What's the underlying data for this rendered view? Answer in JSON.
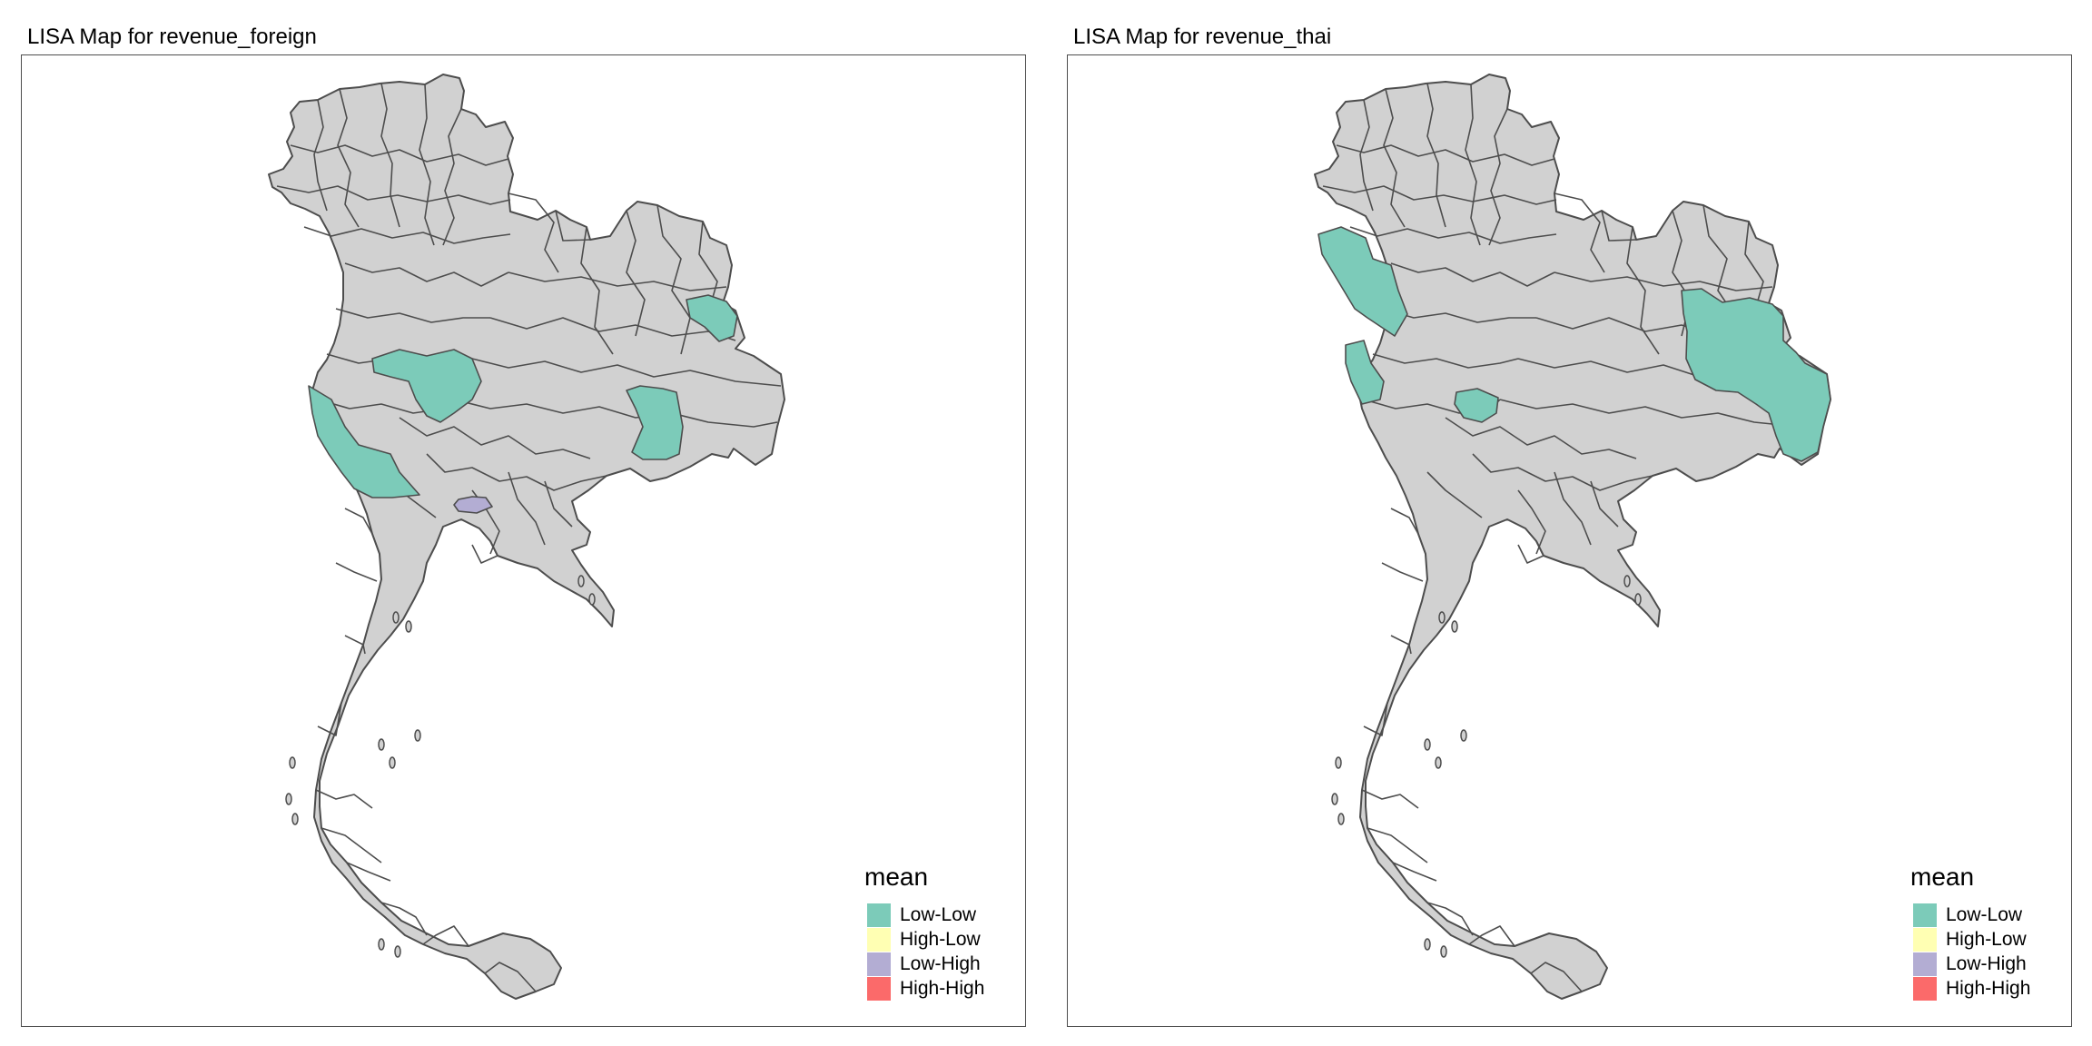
{
  "colors": {
    "Low-Low": "#7ccbb9",
    "High-Low": "#ffffb3",
    "Low-High": "#b3add3",
    "High-High": "#fb6a6a",
    "base": "#d1d1d1",
    "border": "#4d4d4d"
  },
  "maps": [
    {
      "title": "LISA Map for revenue_foreign",
      "legend": {
        "title": "mean",
        "items": [
          {
            "label": "Low-Low",
            "color": "#7ccbb9"
          },
          {
            "label": "High-Low",
            "color": "#ffffb3"
          },
          {
            "label": "Low-High",
            "color": "#b3add3"
          },
          {
            "label": "High-High",
            "color": "#fb6a6a"
          }
        ]
      },
      "highlighted_regions": [
        {
          "category": "Low-Low"
        },
        {
          "category": "Low-Low"
        },
        {
          "category": "Low-Low"
        },
        {
          "category": "Low-Low"
        },
        {
          "category": "Low-High"
        }
      ]
    },
    {
      "title": "LISA Map for revenue_thai",
      "legend": {
        "title": "mean",
        "items": [
          {
            "label": "Low-Low",
            "color": "#7ccbb9"
          },
          {
            "label": "High-Low",
            "color": "#ffffb3"
          },
          {
            "label": "Low-High",
            "color": "#b3add3"
          },
          {
            "label": "High-High",
            "color": "#fb6a6a"
          }
        ]
      },
      "highlighted_regions": [
        {
          "category": "Low-Low"
        },
        {
          "category": "Low-Low"
        },
        {
          "category": "Low-Low"
        },
        {
          "category": "Low-Low"
        }
      ]
    }
  ]
}
